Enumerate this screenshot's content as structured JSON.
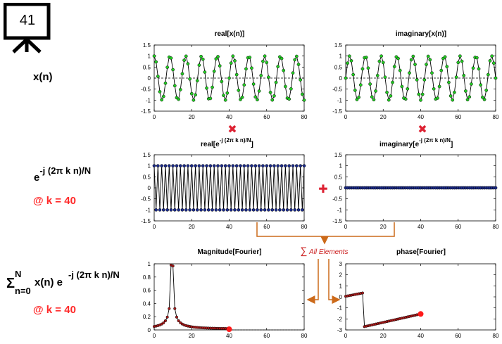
{
  "frame_badge": "41",
  "left_labels": {
    "xn": "x(n)",
    "kernel_base": "e",
    "kernel_exp": "-j (2π k n)/N",
    "k1": "@ k = 40",
    "sum_sym": "Σ",
    "sum_top": "N",
    "sum_bottom": "n=0",
    "sum_body_a": "x(n) e",
    "sum_body_exp": "-j (2π k n)/N",
    "k2": "@ k = 40"
  },
  "plot_titles": {
    "real_x": "real[x(n)]",
    "imag_x": "imaginary[x(n)]",
    "real_e_a": "real[e",
    "real_e_exp": "-j (2π k n)/N",
    "real_e_b": "]",
    "imag_e_a": "imaginary[e",
    "imag_e_exp": "-j (2π k n)/N",
    "imag_e_b": "]",
    "mag": "Magnitude[Fourier]",
    "phase": "phase[Fourier]"
  },
  "operators": {
    "multiply": "✖",
    "plus": "✚",
    "sum_note_sym": "∑",
    "sum_note_text": "All Elements"
  },
  "colors": {
    "green_marker": "#22cc22",
    "blue_marker": "#1a2a8a",
    "red_marker": "#aa1a1a",
    "highlight_dot": "#ff1a1a",
    "arrow_orange": "#cc6a1a",
    "op_red": "#dd2233"
  },
  "axes": {
    "x_ticks": [
      "0",
      "20",
      "40",
      "60",
      "80"
    ],
    "y_ticks_signal": [
      "1.5",
      "1",
      "0.5",
      "0",
      "-0.5",
      "-1",
      "-1.5"
    ],
    "y_ticks_mag": [
      "1",
      "0.8",
      "0.6",
      "0.4",
      "0.2",
      "0"
    ],
    "y_ticks_phase": [
      "3",
      "2",
      "1",
      "0",
      "-1",
      "-2",
      "-3"
    ]
  },
  "chart_data": [
    {
      "type": "line",
      "title": "real[x(n)]",
      "xlim": [
        0,
        80
      ],
      "ylim": [
        -1.5,
        1.5
      ],
      "n_samples": 81,
      "signal": "cos(2π·9.5·n/80)"
    },
    {
      "type": "line",
      "title": "imaginary[x(n)]",
      "xlim": [
        0,
        80
      ],
      "ylim": [
        -1.5,
        1.5
      ],
      "n_samples": 81,
      "signal": "sin(2π·9.5·n/80)"
    },
    {
      "type": "line",
      "title": "real[e^-j(2πkn)/N]",
      "xlim": [
        0,
        80
      ],
      "ylim": [
        -1.5,
        1.5
      ],
      "k": 40,
      "N": 80,
      "values_pattern": [
        1,
        -1
      ]
    },
    {
      "type": "line",
      "title": "imaginary[e^-j(2πkn)/N]",
      "xlim": [
        0,
        80
      ],
      "ylim": [
        -1.5,
        1.5
      ],
      "constant_value": 0
    },
    {
      "type": "line",
      "title": "Magnitude[Fourier]",
      "xlim": [
        0,
        80
      ],
      "ylim": [
        0,
        1
      ],
      "peak_at": 9,
      "peak_value": 0.98,
      "shown_up_to": 40,
      "highlight_point": [
        40,
        0.01
      ]
    },
    {
      "type": "line",
      "title": "phase[Fourier]",
      "xlim": [
        0,
        80
      ],
      "ylim": [
        -3,
        3
      ],
      "segment1": [
        [
          0,
          0.05
        ],
        [
          9,
          0.3
        ]
      ],
      "segment2": [
        [
          10,
          -2.7
        ],
        [
          40,
          -1.55
        ]
      ],
      "highlight_point": [
        40,
        -1.55
      ]
    }
  ]
}
